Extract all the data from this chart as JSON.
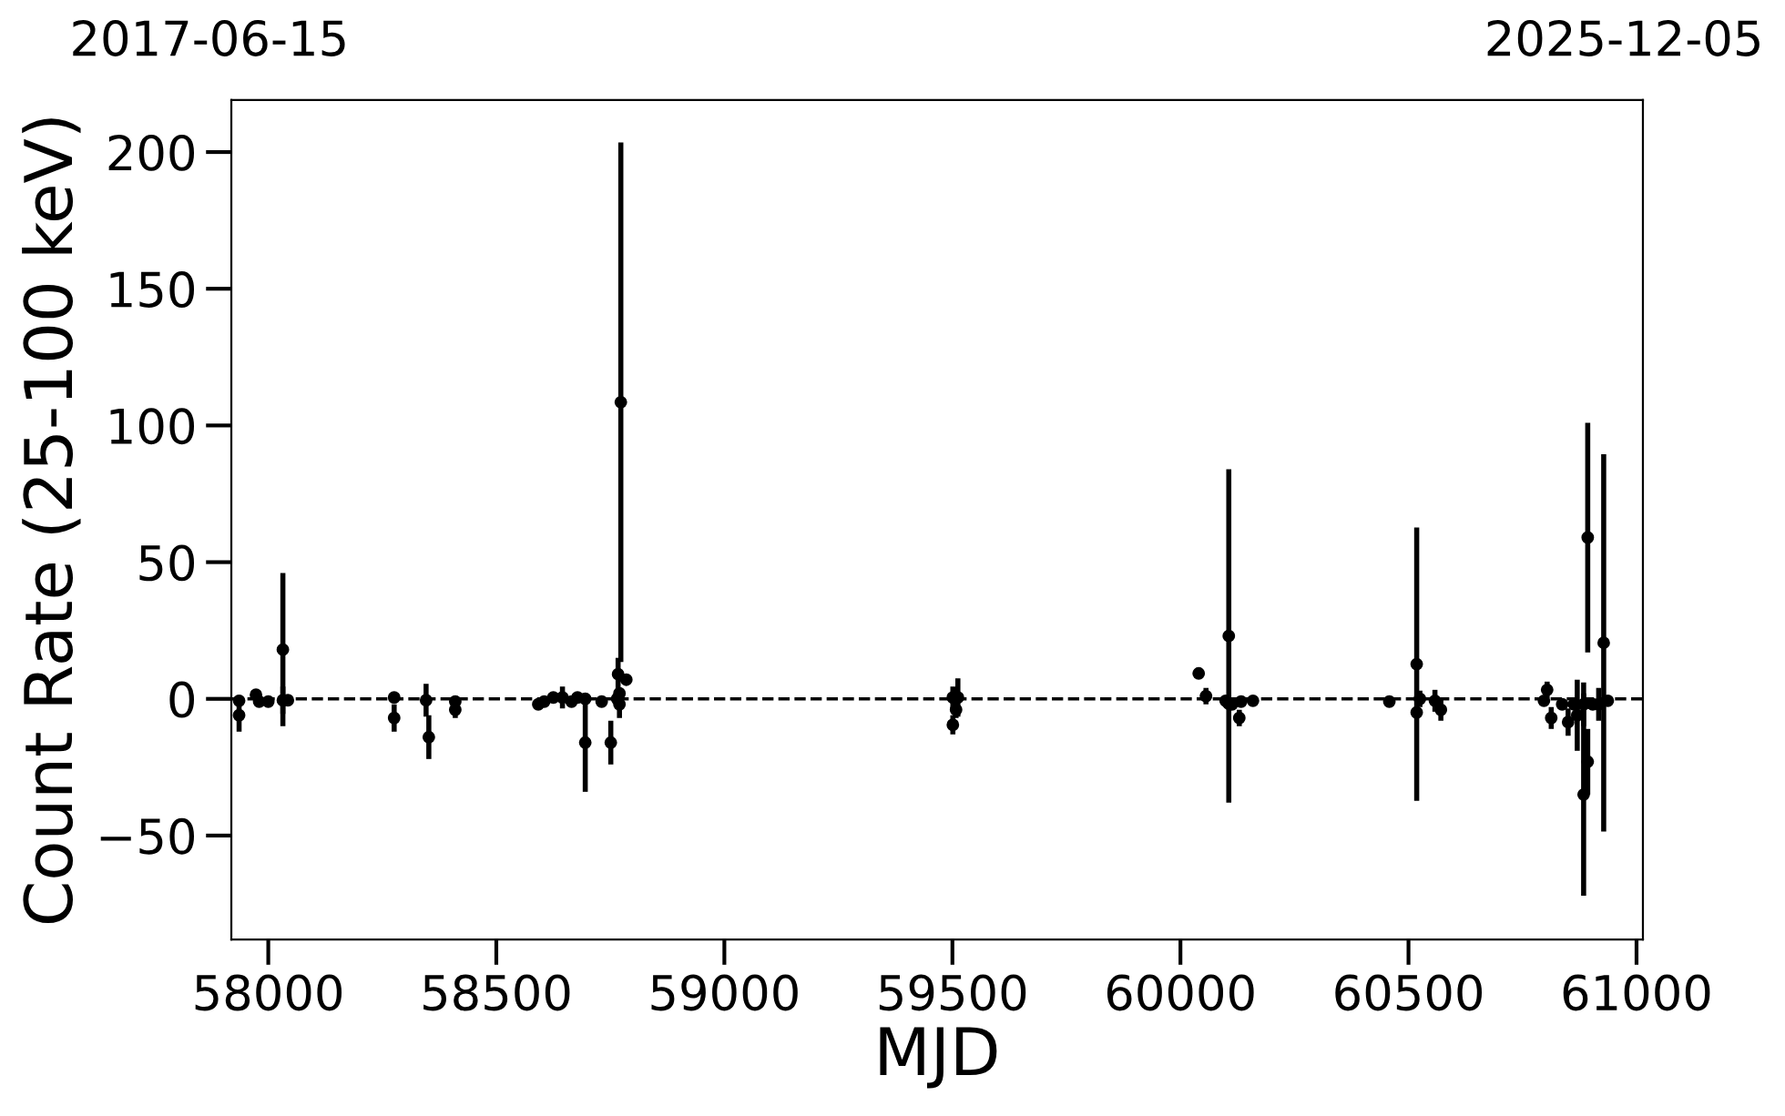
{
  "chart_data": {
    "type": "scatter",
    "xlabel": "MJD",
    "ylabel": "Count Rate (25-100 keV)",
    "annotations": [
      "2017-06-15",
      "2025-12-05"
    ],
    "series": [
      {
        "color": "#000000",
        "x": [
          57936,
          57936,
          57973,
          57980,
          58000,
          58032,
          58032,
          58043,
          58276,
          58276,
          58346,
          58352,
          58410,
          58410,
          58592,
          58605,
          58625,
          58645,
          58665,
          58678,
          58695,
          58695,
          58731,
          58751,
          58765,
          58767,
          58770,
          58770,
          58773,
          58785,
          59501,
          59501,
          59508,
          59512,
          60040,
          60056,
          60099,
          60106,
          60106,
          60113,
          60129,
          60133,
          60159,
          60458,
          60518,
          60518,
          60525,
          60558,
          60571,
          60797,
          60804,
          60813,
          60837,
          60850,
          60863,
          60870,
          60884,
          60884,
          60893,
          60893,
          60904,
          60917,
          60928,
          60937
        ],
        "values": [
          -0.7,
          -6,
          1.5,
          -1,
          -1,
          -0.5,
          18,
          -0.5,
          0.5,
          -7,
          -0.5,
          -14,
          -1,
          -4,
          -2,
          -1,
          0.5,
          0.5,
          -1,
          0.5,
          0,
          -16,
          -1,
          -16,
          0,
          9,
          -2,
          2,
          108.5,
          7,
          0.5,
          -9.5,
          -4,
          0.5,
          9.3,
          1,
          -0.7,
          23,
          -1.8,
          -2,
          -7,
          -1,
          -0.7,
          -1,
          12.7,
          -5,
          0,
          -0.7,
          -4,
          -0.7,
          3.3,
          -7,
          -2,
          -8.5,
          -2,
          -6,
          -35,
          -2,
          -23,
          59,
          -2,
          -2,
          20.5,
          -0.7
        ],
        "errors": [
          2,
          6,
          2,
          1,
          1,
          5,
          28,
          2,
          1,
          5,
          6,
          8,
          2,
          3,
          1,
          1,
          1,
          4,
          1,
          1,
          1,
          18,
          1,
          8,
          2,
          6,
          5,
          2,
          95,
          1,
          4,
          3.5,
          3,
          7,
          1,
          3,
          1,
          61,
          1,
          1,
          3,
          1,
          1,
          1,
          50,
          2,
          3,
          4,
          4,
          1,
          3,
          4,
          1,
          5,
          1,
          13,
          37,
          8,
          12,
          42,
          1,
          6,
          69,
          1
        ]
      }
    ],
    "marker": "circle",
    "grid": false,
    "legend": false,
    "ref_lines": [
      {
        "axis": "y",
        "value": 0,
        "color": "#000000",
        "line_style": "dashed"
      }
    ],
    "xlim": [
      57919,
      61014
    ],
    "ylim": [
      -88,
      219
    ],
    "xticks": [
      58000,
      58500,
      59000,
      59500,
      60000,
      60500,
      61000
    ],
    "yticks": [
      {
        "value": -50,
        "label": "−50"
      },
      0,
      50,
      100,
      150,
      200
    ]
  }
}
